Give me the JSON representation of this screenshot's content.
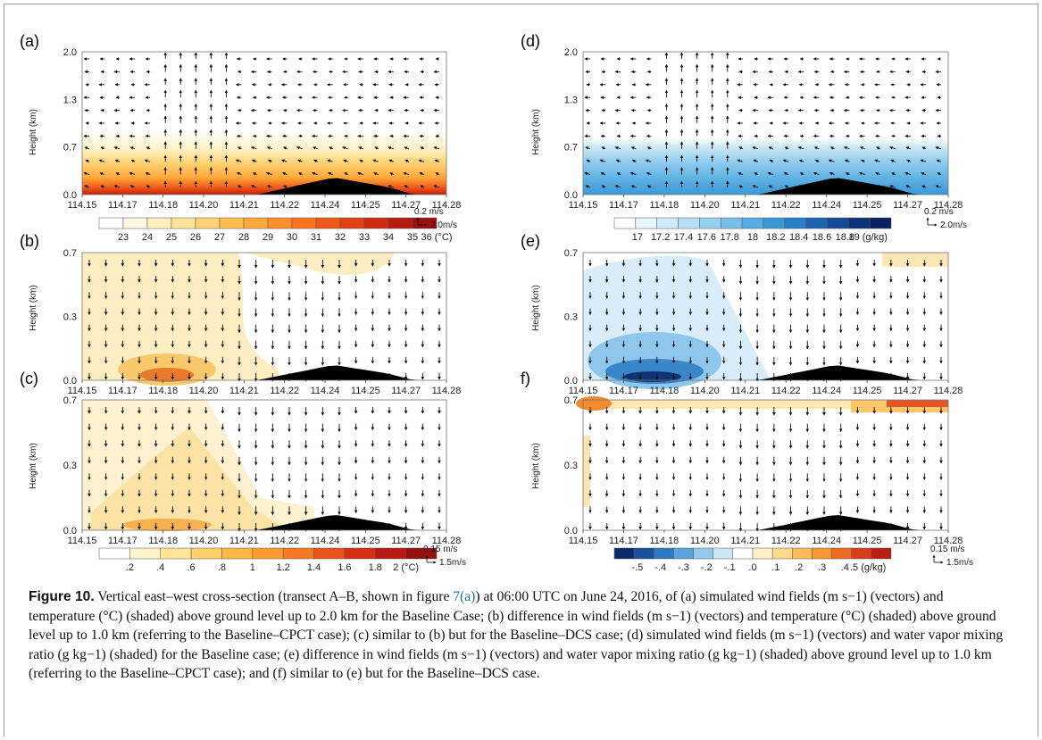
{
  "panels": [
    {
      "id": "a",
      "label": "(a)",
      "yticks": [
        "2.0",
        "1.3",
        "0.7",
        "0.0"
      ],
      "ylabel": "Height (km)",
      "shading": "temperature",
      "colorbar": {
        "ticks": [
          "23",
          "24",
          "25",
          "26",
          "27",
          "28",
          "29",
          "30",
          "31",
          "32",
          "33",
          "34",
          "35",
          "36 (°C)"
        ],
        "colors": [
          "#ffffff",
          "#fff8e0",
          "#fff0c0",
          "#ffe39a",
          "#ffd274",
          "#ffbe52",
          "#ffa83a",
          "#ff8f2a",
          "#f9741f",
          "#ef5a18",
          "#e04214",
          "#cc2d12",
          "#b51c10",
          "#9e0e0e"
        ]
      },
      "ref_vector": {
        "value": "0.2 m/s",
        "arrow": "2.0m/s"
      }
    },
    {
      "id": "b",
      "label": "(b)",
      "yticks": [
        "0.7",
        "0.3",
        "0.0"
      ],
      "ylabel": "Height (km)",
      "shading": "temp-diff-b"
    },
    {
      "id": "c",
      "label": "(c)",
      "yticks": [
        "0.7",
        "0.3",
        "0.0"
      ],
      "ylabel": "Height (km)",
      "shading": "temp-diff-c",
      "colorbar": {
        "ticks": [
          ".2",
          ".4",
          ".6",
          ".8",
          "1",
          "1.2",
          "1.4",
          "1.6",
          "1.8",
          "2 (°C)"
        ],
        "colors": [
          "#ffffff",
          "#fff3cc",
          "#ffe39a",
          "#ffd06a",
          "#ffb844",
          "#ff9a2e",
          "#f77822",
          "#e8541a",
          "#d53014",
          "#b81a12",
          "#961010"
        ]
      },
      "ref_vector": {
        "value": "0.15 m/s",
        "arrow": "1.5m/s"
      }
    },
    {
      "id": "d",
      "label": "(d)",
      "yticks": [
        "2.0",
        "1.3",
        "0.7",
        "0.0"
      ],
      "ylabel": "Height (km)",
      "shading": "moisture",
      "colorbar": {
        "ticks": [
          "17",
          "17.2",
          "17.4",
          "17.6",
          "17.8",
          "18",
          "18.2",
          "18.4",
          "18.6",
          "18.8",
          "19 (g/kg)"
        ],
        "colors": [
          "#ffffff",
          "#eaf5fc",
          "#d2ebf8",
          "#b6def4",
          "#97cfee",
          "#77bfe8",
          "#55ade1",
          "#3a97d6",
          "#2a7fc6",
          "#1d64b0",
          "#154a94",
          "#0e3278",
          "#0a2060"
        ]
      },
      "ref_vector": {
        "value": "0.2 m/s",
        "arrow": "2.0m/s"
      }
    },
    {
      "id": "e",
      "label": "(e)",
      "yticks": [
        "0.7",
        "0.3",
        "0.0"
      ],
      "ylabel": "Height (km)",
      "shading": "moist-diff-e"
    },
    {
      "id": "f",
      "label": "f)",
      "yticks": [
        "0.7",
        "0.3",
        "0.0"
      ],
      "ylabel": "Height (km)",
      "shading": "moist-diff-f",
      "colorbar": {
        "ticks": [
          "-.5",
          "-.4",
          "-.3",
          "-.2",
          "-.1",
          ".0",
          ".1",
          ".2",
          ".3",
          ".4",
          ".5 (g/kg)"
        ],
        "colors": [
          "#0b2a6b",
          "#1a4f9c",
          "#2f79c4",
          "#5aa3dc",
          "#94c8ec",
          "#cde6f6",
          "#ffffff",
          "#fff1c4",
          "#ffd98a",
          "#ffbb55",
          "#f99533",
          "#ed6a22",
          "#d93d18",
          "#b81e12"
        ]
      },
      "ref_vector": {
        "value": "0.15 m/s",
        "arrow": "1.5m/s"
      }
    }
  ],
  "xticks": [
    "114.15",
    "114.17",
    "114.18",
    "114.20",
    "114.21",
    "114.22",
    "114.24",
    "114.25",
    "114.27",
    "114.28"
  ],
  "caption": {
    "figure_number": "Figure 10.",
    "text_1": "Vertical east–west cross-section (transect A–B, shown in figure ",
    "link": "7(a)",
    "text_2": ") at 06:00 UTC on June 24, 2016, of (a) simulated wind fields (m s−1) (vectors) and temperature (°C) (shaded) above ground level up to 2.0 km for the Baseline Case; (b) difference in wind fields (m s−1) (vectors) and temperature (°C) (shaded) above ground level up to 1.0 km (referring to the Baseline–CPCT case); (c) similar to (b) but for the Baseline–DCS case; (d) simulated wind fields (m s−1) (vectors) and water vapor mixing ratio (g kg−1) (shaded) for the Baseline case; (e) difference in wind fields (m s−1) (vectors) and water vapor mixing ratio (g kg−1) (shaded) above ground level up to 1.0 km (referring to the Baseline–CPCT case); and (f) similar to (e) but for the Baseline–DCS case."
  }
}
